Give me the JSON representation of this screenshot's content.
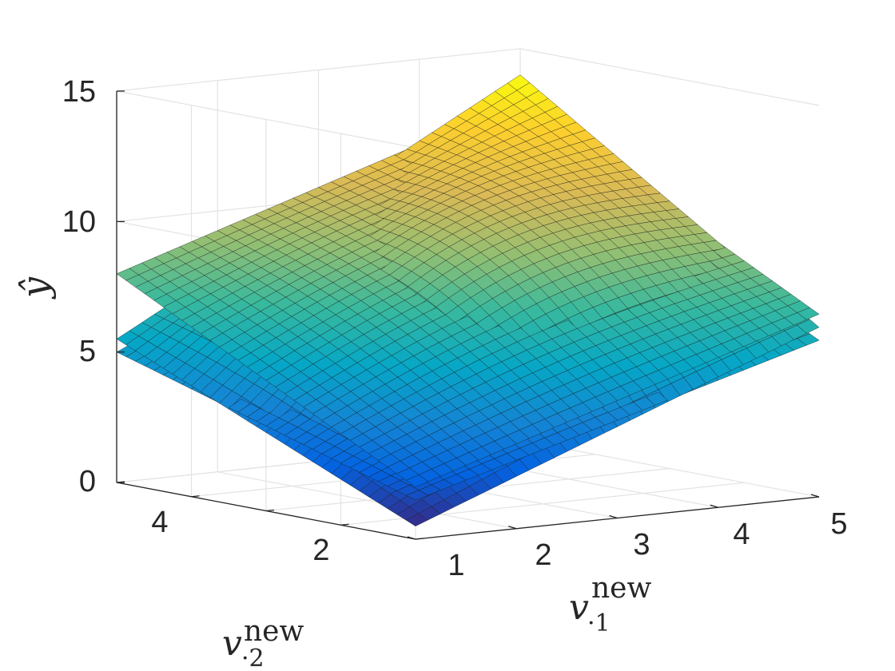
{
  "chart_data": {
    "type": "surface",
    "title": "",
    "x_label": {
      "base": "v",
      "subscript": "·1",
      "superscript": "new"
    },
    "y_label": {
      "base": "v",
      "subscript": "·2",
      "superscript": "new"
    },
    "z_label": "ŷ",
    "x_range": [
      1,
      5
    ],
    "y_range": [
      1,
      5
    ],
    "z_range": [
      0,
      15
    ],
    "x_ticks": [
      "1",
      "2",
      "3",
      "4",
      "5"
    ],
    "y_ticks": [
      "2",
      "4"
    ],
    "z_ticks": [
      "0",
      "5",
      "10",
      "15"
    ],
    "grid": true,
    "colormap": "parula",
    "colormap_colors": [
      "#352A87",
      "#0363E1",
      "#1485D4",
      "#06A7C6",
      "#38B99E",
      "#92BF73",
      "#D9BA56",
      "#FCCE2E",
      "#F9FB0E"
    ],
    "surfaces": [
      {
        "name": "",
        "corners": {
          "x1y1": 0.5,
          "x5y1": 6.5,
          "x1y5": 5.5,
          "x5y5": 14.0
        }
      },
      {
        "name": "",
        "corners": {
          "x1y1": 2.0,
          "x5y1": 7.0,
          "x1y5": 8.0,
          "x5y5": 13.0
        }
      },
      {
        "name": "",
        "corners": {
          "x1y1": 1.5,
          "x5y1": 6.0,
          "x1y5": 5.0,
          "x5y5": 12.0
        }
      }
    ]
  }
}
